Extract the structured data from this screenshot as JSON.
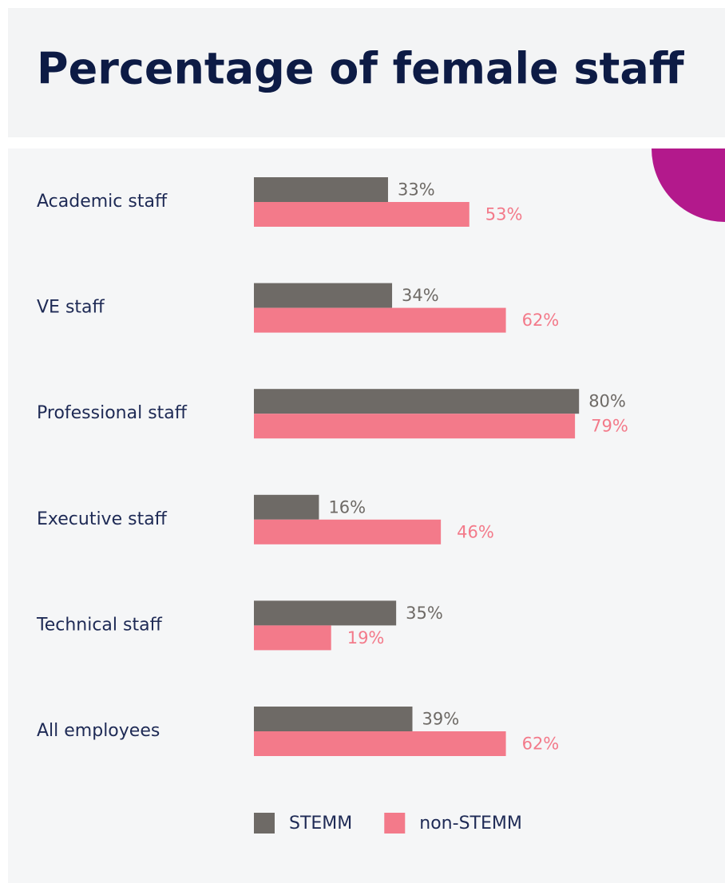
{
  "chart_data": {
    "type": "bar",
    "orientation": "horizontal",
    "title": "Percentage of female staff",
    "categories": [
      "Academic staff",
      "VE staff",
      "Professional staff",
      "Executive staff",
      "Technical staff",
      "All employees"
    ],
    "series": [
      {
        "name": "STEMM",
        "color": "#6e6a66",
        "values": [
          33,
          34,
          80,
          16,
          35,
          39
        ],
        "value_labels": [
          "33%",
          "34%",
          "80%",
          "16%",
          "35%",
          "39%"
        ]
      },
      {
        "name": "non-STEMM",
        "color": "#f37a8a",
        "values": [
          53,
          62,
          79,
          46,
          19,
          62
        ],
        "value_labels": [
          "53%",
          "62%",
          "79%",
          "46%",
          "19%",
          "62%"
        ]
      }
    ],
    "xlim": [
      0,
      100
    ],
    "legend": "bottom"
  }
}
